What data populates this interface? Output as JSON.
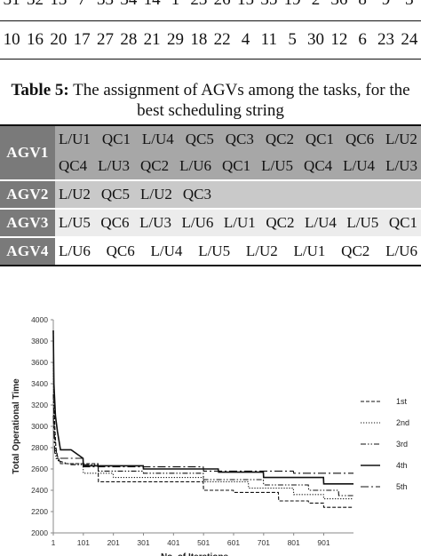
{
  "top_table": {
    "row1": [
      "31",
      "32",
      "13",
      "7",
      "33",
      "34",
      "14",
      "1",
      "23",
      "26",
      "15",
      "35",
      "19",
      "2",
      "36",
      "8",
      "9",
      "3"
    ],
    "row2": [
      "10",
      "16",
      "20",
      "17",
      "27",
      "28",
      "21",
      "29",
      "18",
      "22",
      "4",
      "11",
      "5",
      "30",
      "12",
      "6",
      "23",
      "24"
    ]
  },
  "caption": {
    "label": "Table 5:",
    "text": " The assignment of AGVs among the tasks, for the best scheduling string"
  },
  "agv_table": {
    "rows": [
      {
        "name": "AGV1",
        "lines": [
          [
            "L/U1",
            "QC1",
            "L/U4",
            "QC5",
            "QC3",
            "QC2",
            "QC1",
            "QC6",
            "L/U2"
          ],
          [
            "QC4",
            "L/U3",
            "QC2",
            "L/U6",
            "QC1",
            "L/U5",
            "QC4",
            "L/U4",
            "L/U3"
          ]
        ]
      },
      {
        "name": "AGV2",
        "lines": [
          [
            "L/U2",
            "QC5",
            "L/U2",
            "QC3"
          ]
        ]
      },
      {
        "name": "AGV3",
        "lines": [
          [
            "L/U5",
            "QC6",
            "L/U3",
            "L/U6",
            "L/U1",
            "QC2",
            "L/U4",
            "L/U5",
            "QC1"
          ]
        ]
      },
      {
        "name": "AGV4",
        "lines": [
          [
            "L/U6",
            "QC6",
            "L/U4",
            "L/U5",
            "L/U2",
            "L/U1",
            "QC2",
            "L/U6"
          ]
        ]
      }
    ]
  },
  "chart_data": {
    "type": "line",
    "xlabel": "No. of Iterations",
    "ylabel": "Total Operational Time",
    "xticks": [
      "1",
      "101",
      "201",
      "301",
      "401",
      "501",
      "601",
      "701",
      "801",
      "901"
    ],
    "yticks": [
      2000,
      2200,
      2400,
      2600,
      2800,
      3000,
      3200,
      3400,
      3600,
      3800,
      4000
    ],
    "xlim": [
      1,
      1000
    ],
    "ylim": [
      2000,
      4000
    ],
    "grid": false,
    "legend_position": "right",
    "series": [
      {
        "name": "1st",
        "style": "dashed",
        "points": [
          [
            1,
            3900
          ],
          [
            3,
            3300
          ],
          [
            6,
            3000
          ],
          [
            10,
            2800
          ],
          [
            15,
            2720
          ],
          [
            25,
            2650
          ],
          [
            60,
            2650
          ],
          [
            150,
            2650
          ],
          [
            151,
            2480
          ],
          [
            500,
            2480
          ],
          [
            501,
            2400
          ],
          [
            600,
            2400
          ],
          [
            601,
            2380
          ],
          [
            750,
            2380
          ],
          [
            751,
            2300
          ],
          [
            850,
            2300
          ],
          [
            851,
            2280
          ],
          [
            900,
            2280
          ],
          [
            901,
            2240
          ],
          [
            1000,
            2240
          ]
        ]
      },
      {
        "name": "2nd",
        "style": "dotted",
        "points": [
          [
            1,
            3600
          ],
          [
            4,
            3050
          ],
          [
            10,
            2700
          ],
          [
            30,
            2650
          ],
          [
            100,
            2650
          ],
          [
            101,
            2560
          ],
          [
            200,
            2560
          ],
          [
            201,
            2520
          ],
          [
            500,
            2520
          ],
          [
            501,
            2480
          ],
          [
            650,
            2480
          ],
          [
            651,
            2420
          ],
          [
            800,
            2420
          ],
          [
            801,
            2360
          ],
          [
            900,
            2360
          ],
          [
            901,
            2320
          ],
          [
            1000,
            2320
          ]
        ]
      },
      {
        "name": "3rd",
        "style": "dash-dot-dot",
        "points": [
          [
            1,
            3300
          ],
          [
            5,
            2900
          ],
          [
            15,
            2680
          ],
          [
            60,
            2640
          ],
          [
            150,
            2640
          ],
          [
            151,
            2580
          ],
          [
            300,
            2580
          ],
          [
            301,
            2560
          ],
          [
            500,
            2560
          ],
          [
            501,
            2500
          ],
          [
            700,
            2500
          ],
          [
            701,
            2450
          ],
          [
            850,
            2450
          ],
          [
            851,
            2400
          ],
          [
            950,
            2400
          ],
          [
            951,
            2350
          ],
          [
            1000,
            2350
          ]
        ]
      },
      {
        "name": "4th",
        "style": "solid",
        "points": [
          [
            1,
            3900
          ],
          [
            3,
            3400
          ],
          [
            8,
            3100
          ],
          [
            15,
            2950
          ],
          [
            25,
            2780
          ],
          [
            60,
            2780
          ],
          [
            100,
            2700
          ],
          [
            101,
            2630
          ],
          [
            300,
            2630
          ],
          [
            301,
            2600
          ],
          [
            550,
            2600
          ],
          [
            551,
            2570
          ],
          [
            700,
            2570
          ],
          [
            701,
            2520
          ],
          [
            900,
            2520
          ],
          [
            901,
            2460
          ],
          [
            1000,
            2460
          ]
        ]
      },
      {
        "name": "5th",
        "style": "long-dash-dot",
        "points": [
          [
            1,
            3100
          ],
          [
            6,
            2750
          ],
          [
            20,
            2700
          ],
          [
            100,
            2700
          ],
          [
            101,
            2620
          ],
          [
            500,
            2620
          ],
          [
            501,
            2580
          ],
          [
            800,
            2580
          ],
          [
            801,
            2560
          ],
          [
            1000,
            2560
          ]
        ]
      }
    ]
  }
}
